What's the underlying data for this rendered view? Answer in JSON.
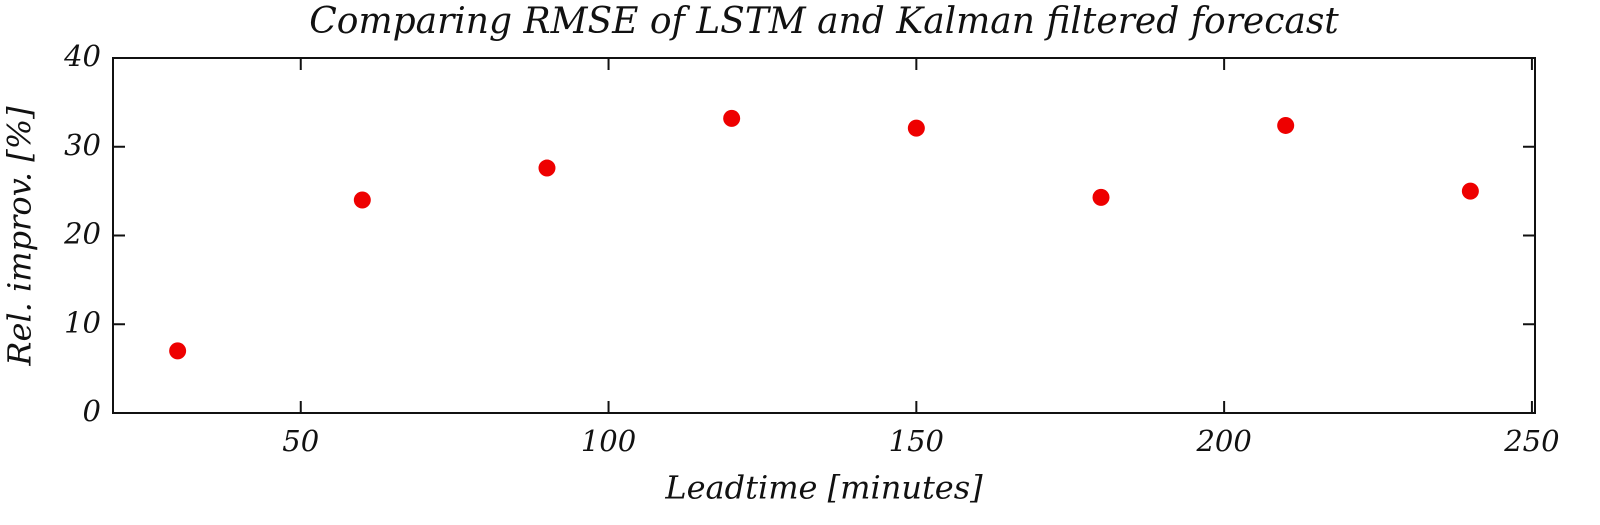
{
  "chart_data": {
    "type": "scatter",
    "title": "Comparing RMSE of LSTM and Kalman filtered forecast",
    "x_label": "Leadtime [minutes]",
    "y_label": "Rel. improv. [%]",
    "series": [
      {
        "color": "#ee0000",
        "x": [
          30,
          60,
          90,
          120,
          150,
          180,
          210,
          240
        ],
        "values": [
          7.0,
          24.0,
          27.6,
          33.2,
          32.1,
          24.3,
          32.4,
          25.0
        ]
      }
    ],
    "xlim": [
      19.5,
      250.5
    ],
    "xticks": [
      50,
      100,
      150,
      200,
      250
    ],
    "ylim": [
      0,
      40
    ],
    "yticks": [
      0,
      10,
      20,
      30,
      40
    ],
    "grid": false
  }
}
